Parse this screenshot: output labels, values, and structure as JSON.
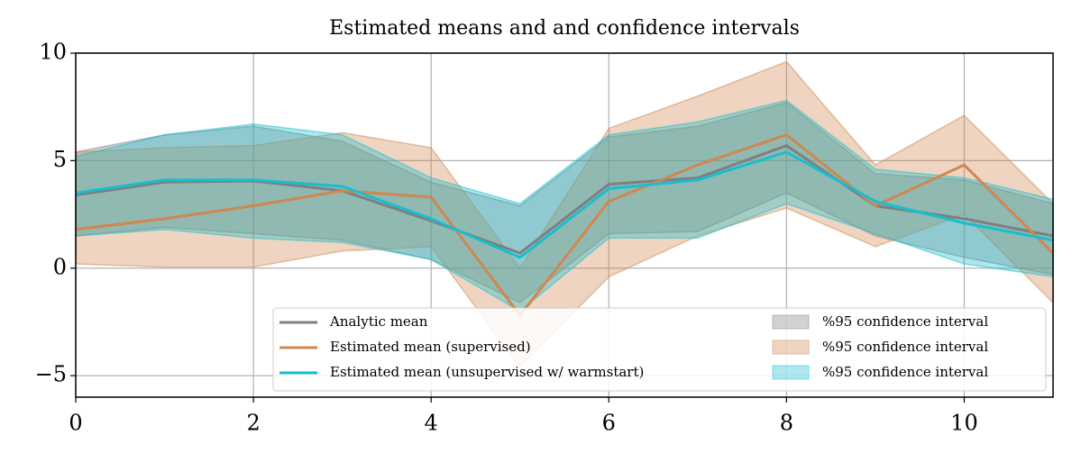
{
  "chart_data": {
    "type": "line_band",
    "title": "Estimated means and and confidence intervals",
    "x": [
      0,
      1,
      2,
      3,
      4,
      5,
      6,
      7,
      8,
      9,
      10,
      11
    ],
    "xlim": [
      0,
      11
    ],
    "xticks": [
      0,
      2,
      4,
      6,
      8,
      10
    ],
    "ylim": [
      -6,
      10
    ],
    "yticks": [
      {
        "value": -5,
        "label": "−5"
      },
      0,
      5,
      10
    ],
    "grid": true,
    "legend": "lower right",
    "series": [
      {
        "name": "Analytic mean",
        "color": "#7f7f7f",
        "band_label": "%95 confidence interval",
        "values": [
          3.4,
          4.0,
          4.05,
          3.6,
          2.2,
          0.7,
          3.9,
          4.2,
          5.7,
          2.9,
          2.3,
          1.5
        ],
        "upper": [
          5.4,
          6.2,
          6.6,
          5.9,
          4.0,
          2.9,
          6.1,
          6.6,
          7.7,
          4.4,
          4.1,
          3.0
        ],
        "lower": [
          1.5,
          1.9,
          1.6,
          1.3,
          0.4,
          -1.6,
          1.6,
          1.7,
          3.5,
          1.5,
          0.5,
          -0.3
        ]
      },
      {
        "name": "Estimated mean (supervised)",
        "color": "#d0874e",
        "band_label": "%95 confidence interval",
        "values": [
          1.8,
          2.3,
          2.9,
          3.6,
          3.3,
          -2.2,
          3.1,
          4.8,
          6.2,
          2.9,
          4.8,
          0.7
        ],
        "upper": [
          5.4,
          5.6,
          5.7,
          6.3,
          5.6,
          0,
          6.5,
          8.0,
          9.6,
          4.8,
          7.1,
          3.0
        ],
        "lower": [
          0.2,
          0.05,
          0.05,
          0.8,
          1.0,
          -4.6,
          -0.4,
          1.5,
          2.8,
          1.0,
          2.5,
          -1.6
        ]
      },
      {
        "name": "Estimated mean (unsupervised w/ warmstart)",
        "color": "#17becf",
        "band_label": "%95 confidence interval",
        "values": [
          3.5,
          4.1,
          4.1,
          3.8,
          2.3,
          0.5,
          3.7,
          4.1,
          5.4,
          3.1,
          2.1,
          1.3
        ],
        "upper": [
          5.2,
          6.2,
          6.7,
          6.2,
          4.2,
          3.0,
          6.2,
          6.8,
          7.8,
          4.6,
          4.2,
          3.2
        ],
        "lower": [
          1.5,
          1.8,
          1.4,
          1.2,
          0.4,
          -2.0,
          1.4,
          1.4,
          3.0,
          1.6,
          0.2,
          -0.4
        ]
      }
    ]
  }
}
